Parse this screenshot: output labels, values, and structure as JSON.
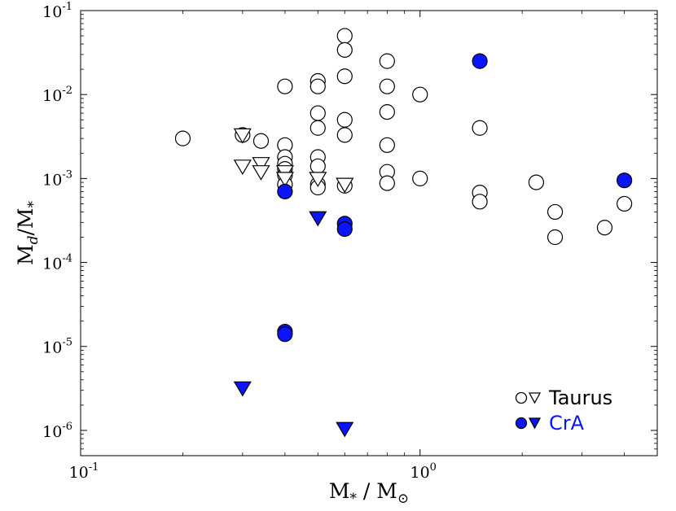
{
  "chart_data": {
    "type": "scatter",
    "title": "",
    "xlabel_main": "M",
    "xlabel_sub": "*",
    "xlabel_sep": " / ",
    "xlabel_main2": "M",
    "xlabel_sub2": "⊙",
    "ylabel_main": "M",
    "ylabel_sub": "d",
    "ylabel_sep": "/",
    "ylabel_main2": "M",
    "ylabel_sub2": "*",
    "x_scale": "log",
    "y_scale": "log",
    "xlim": [
      0.1,
      5.0
    ],
    "ylim": [
      5e-07,
      0.1
    ],
    "x_ticks": [
      {
        "value": 0.1,
        "base": "10",
        "exp": "-1"
      },
      {
        "value": 1,
        "base": "10",
        "exp": "0"
      }
    ],
    "y_ticks": [
      {
        "value": 1e-06,
        "base": "10",
        "exp": "-6"
      },
      {
        "value": 1e-05,
        "base": "10",
        "exp": "-5"
      },
      {
        "value": 0.0001,
        "base": "10",
        "exp": "-4"
      },
      {
        "value": 0.001,
        "base": "10",
        "exp": "-3"
      },
      {
        "value": 0.01,
        "base": "10",
        "exp": "-2"
      },
      {
        "value": 0.1,
        "base": "10",
        "exp": "-1"
      }
    ],
    "grid": false,
    "legend_position": "bottom-right",
    "series": [
      {
        "name": "Taurus",
        "group": "Taurus",
        "marker": "circle",
        "filled": false,
        "color": "#ffffff",
        "points": [
          [
            0.2,
            0.003
          ],
          [
            0.3,
            0.0033
          ],
          [
            0.34,
            0.0028
          ],
          [
            0.4,
            0.0125
          ],
          [
            0.4,
            0.0025
          ],
          [
            0.4,
            0.0018
          ],
          [
            0.4,
            0.0015
          ],
          [
            0.4,
            0.0013
          ],
          [
            0.4,
            0.0011
          ],
          [
            0.4,
            0.00085
          ],
          [
            0.5,
            0.0145
          ],
          [
            0.5,
            0.0125
          ],
          [
            0.5,
            0.006
          ],
          [
            0.5,
            0.004
          ],
          [
            0.5,
            0.0018
          ],
          [
            0.5,
            0.0014
          ],
          [
            0.5,
            0.00085
          ],
          [
            0.5,
            0.00078
          ],
          [
            0.6,
            0.05
          ],
          [
            0.6,
            0.034
          ],
          [
            0.6,
            0.0165
          ],
          [
            0.6,
            0.005
          ],
          [
            0.6,
            0.0033
          ],
          [
            0.6,
            0.00082
          ],
          [
            0.8,
            0.025
          ],
          [
            0.8,
            0.0125
          ],
          [
            0.8,
            0.0062
          ],
          [
            0.8,
            0.0025
          ],
          [
            0.8,
            0.0012
          ],
          [
            0.8,
            0.00088
          ],
          [
            1.0,
            0.01
          ],
          [
            1.0,
            0.001
          ],
          [
            1.5,
            0.004
          ],
          [
            1.5,
            0.00068
          ],
          [
            1.5,
            0.00053
          ],
          [
            2.2,
            0.0009
          ],
          [
            2.5,
            0.0004
          ],
          [
            2.5,
            0.0002
          ],
          [
            3.5,
            0.00026
          ],
          [
            4.0,
            0.0005
          ]
        ]
      },
      {
        "name": "Taurus",
        "group": "Taurus",
        "marker": "triangle",
        "filled": false,
        "color": "#ffffff",
        "points": [
          [
            0.3,
            0.0033
          ],
          [
            0.3,
            0.0014
          ],
          [
            0.34,
            0.0015
          ],
          [
            0.34,
            0.0012
          ],
          [
            0.4,
            0.0012
          ],
          [
            0.4,
            0.001
          ],
          [
            0.5,
            0.001
          ],
          [
            0.6,
            0.00085
          ]
        ]
      },
      {
        "name": "CrA",
        "group": "CrA",
        "marker": "circle",
        "filled": true,
        "color": "#0a14ff",
        "points": [
          [
            0.4,
            0.0007
          ],
          [
            0.4,
            1.5e-05
          ],
          [
            0.4,
            1.4e-05
          ],
          [
            0.6,
            0.00029
          ],
          [
            0.6,
            0.00025
          ],
          [
            1.5,
            0.025
          ],
          [
            4.0,
            0.00095
          ]
        ]
      },
      {
        "name": "CrA",
        "group": "CrA",
        "marker": "triangle",
        "filled": true,
        "color": "#0a14ff",
        "points": [
          [
            0.3,
            3.2e-06
          ],
          [
            0.5,
            0.00034
          ],
          [
            0.6,
            1.05e-06
          ]
        ]
      }
    ],
    "legend": [
      {
        "label": "Taurus",
        "color": "#000000",
        "marker_fill": "#ffffff"
      },
      {
        "label": "CrA",
        "color": "#0a14ff",
        "marker_fill": "#0a14ff"
      }
    ]
  }
}
